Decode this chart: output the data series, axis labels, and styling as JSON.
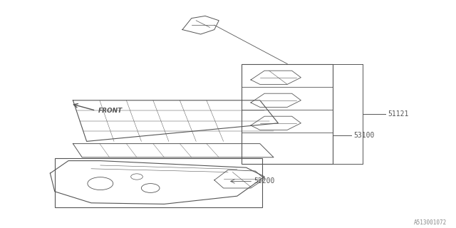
{
  "bg_color": "#ffffff",
  "line_color": "#555555",
  "text_color": "#555555",
  "border_color": "#888888",
  "watermark": "A513001072",
  "fig_width": 6.4,
  "fig_height": 3.2
}
